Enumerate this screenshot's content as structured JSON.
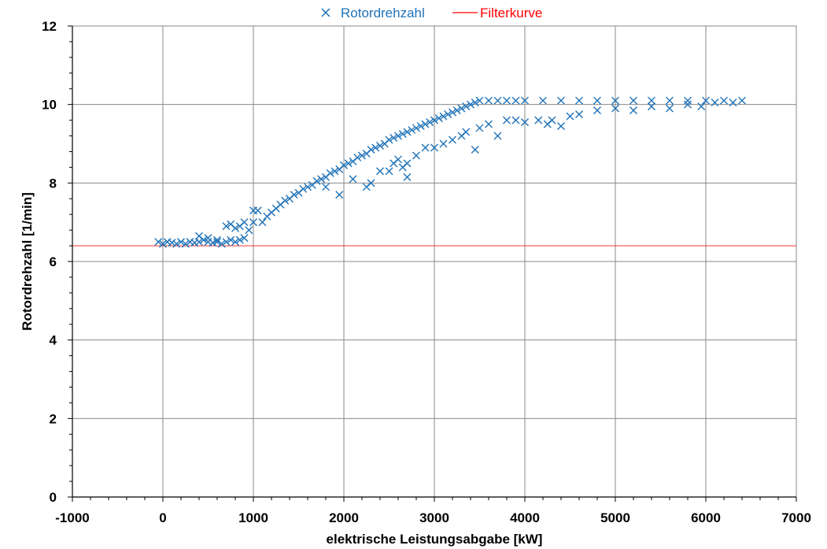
{
  "chart_data": {
    "type": "scatter",
    "xlabel": "elektrische Leistungsabgabe [kW]",
    "ylabel": "Rotordrehzahl  [1/min]",
    "xlim": [
      -1000,
      7000
    ],
    "ylim": [
      0,
      12
    ],
    "x_ticks": [
      -1000,
      0,
      1000,
      2000,
      3000,
      4000,
      5000,
      6000,
      7000
    ],
    "y_ticks": [
      0,
      2,
      4,
      6,
      8,
      10,
      12
    ],
    "grid": true,
    "legend_position": "top-center",
    "series": [
      {
        "name": "Rotordrehzahl",
        "marker": "x",
        "color": "#1f72b8",
        "points": [
          [
            -50,
            6.5
          ],
          [
            0,
            6.45
          ],
          [
            50,
            6.5
          ],
          [
            100,
            6.48
          ],
          [
            150,
            6.45
          ],
          [
            200,
            6.5
          ],
          [
            250,
            6.45
          ],
          [
            300,
            6.5
          ],
          [
            350,
            6.48
          ],
          [
            400,
            6.5
          ],
          [
            450,
            6.55
          ],
          [
            500,
            6.5
          ],
          [
            550,
            6.48
          ],
          [
            600,
            6.5
          ],
          [
            650,
            6.45
          ],
          [
            700,
            6.5
          ],
          [
            750,
            6.55
          ],
          [
            800,
            6.5
          ],
          [
            850,
            6.55
          ],
          [
            900,
            6.6
          ],
          [
            400,
            6.65
          ],
          [
            500,
            6.6
          ],
          [
            600,
            6.55
          ],
          [
            700,
            6.9
          ],
          [
            750,
            6.95
          ],
          [
            800,
            6.85
          ],
          [
            850,
            6.9
          ],
          [
            900,
            7.0
          ],
          [
            950,
            6.8
          ],
          [
            1000,
            7.3
          ],
          [
            1050,
            7.3
          ],
          [
            1000,
            7.0
          ],
          [
            1100,
            7.0
          ],
          [
            1150,
            7.15
          ],
          [
            1200,
            7.25
          ],
          [
            1250,
            7.35
          ],
          [
            1300,
            7.45
          ],
          [
            1350,
            7.55
          ],
          [
            1400,
            7.6
          ],
          [
            1450,
            7.7
          ],
          [
            1500,
            7.75
          ],
          [
            1550,
            7.85
          ],
          [
            1600,
            7.9
          ],
          [
            1650,
            7.95
          ],
          [
            1700,
            8.05
          ],
          [
            1750,
            8.1
          ],
          [
            1800,
            8.15
          ],
          [
            1850,
            8.25
          ],
          [
            1900,
            8.3
          ],
          [
            1950,
            8.35
          ],
          [
            2000,
            8.45
          ],
          [
            2050,
            8.5
          ],
          [
            2100,
            8.55
          ],
          [
            2150,
            8.65
          ],
          [
            2200,
            8.7
          ],
          [
            2250,
            8.75
          ],
          [
            2300,
            8.85
          ],
          [
            2350,
            8.9
          ],
          [
            2400,
            8.95
          ],
          [
            2450,
            9.0
          ],
          [
            2500,
            9.1
          ],
          [
            2550,
            9.15
          ],
          [
            2600,
            9.2
          ],
          [
            2650,
            9.25
          ],
          [
            2700,
            9.3
          ],
          [
            2750,
            9.35
          ],
          [
            2800,
            9.4
          ],
          [
            2850,
            9.45
          ],
          [
            2900,
            9.5
          ],
          [
            2950,
            9.55
          ],
          [
            3000,
            9.6
          ],
          [
            3050,
            9.65
          ],
          [
            3100,
            9.7
          ],
          [
            3150,
            9.75
          ],
          [
            3200,
            9.8
          ],
          [
            3250,
            9.85
          ],
          [
            3300,
            9.9
          ],
          [
            3350,
            9.95
          ],
          [
            3400,
            10.0
          ],
          [
            3450,
            10.05
          ],
          [
            3500,
            10.1
          ],
          [
            3600,
            10.1
          ],
          [
            3700,
            10.1
          ],
          [
            3800,
            10.1
          ],
          [
            3900,
            10.1
          ],
          [
            4000,
            10.1
          ],
          [
            4200,
            10.1
          ],
          [
            4400,
            10.1
          ],
          [
            4600,
            10.1
          ],
          [
            4800,
            10.1
          ],
          [
            5000,
            10.1
          ],
          [
            5200,
            10.1
          ],
          [
            5400,
            10.1
          ],
          [
            5600,
            10.1
          ],
          [
            5800,
            10.1
          ],
          [
            6000,
            10.1
          ],
          [
            6200,
            10.1
          ],
          [
            6400,
            10.1
          ],
          [
            1800,
            7.9
          ],
          [
            1950,
            7.7
          ],
          [
            2100,
            8.1
          ],
          [
            2250,
            7.9
          ],
          [
            2300,
            8.0
          ],
          [
            2400,
            8.3
          ],
          [
            2500,
            8.3
          ],
          [
            2550,
            8.5
          ],
          [
            2600,
            8.6
          ],
          [
            2650,
            8.4
          ],
          [
            2700,
            8.15
          ],
          [
            2700,
            8.5
          ],
          [
            2800,
            8.7
          ],
          [
            2900,
            8.9
          ],
          [
            3000,
            8.9
          ],
          [
            3100,
            9.0
          ],
          [
            3200,
            9.1
          ],
          [
            3300,
            9.2
          ],
          [
            3350,
            9.3
          ],
          [
            3450,
            8.85
          ],
          [
            3500,
            9.4
          ],
          [
            3600,
            9.5
          ],
          [
            3700,
            9.2
          ],
          [
            3800,
            9.6
          ],
          [
            3900,
            9.6
          ],
          [
            4000,
            9.55
          ],
          [
            4150,
            9.6
          ],
          [
            4250,
            9.5
          ],
          [
            4300,
            9.6
          ],
          [
            4400,
            9.45
          ],
          [
            4500,
            9.7
          ],
          [
            4600,
            9.75
          ],
          [
            4800,
            9.85
          ],
          [
            5000,
            9.9
          ],
          [
            5200,
            9.85
          ],
          [
            5400,
            9.95
          ],
          [
            5600,
            9.9
          ],
          [
            5800,
            10.0
          ],
          [
            5950,
            9.95
          ],
          [
            6100,
            10.05
          ],
          [
            6300,
            10.05
          ]
        ]
      },
      {
        "name": "Filterkurve",
        "marker": "line",
        "color": "#ff0000",
        "points": [
          [
            -1000,
            6.4
          ],
          [
            7000,
            6.4
          ]
        ]
      }
    ]
  }
}
